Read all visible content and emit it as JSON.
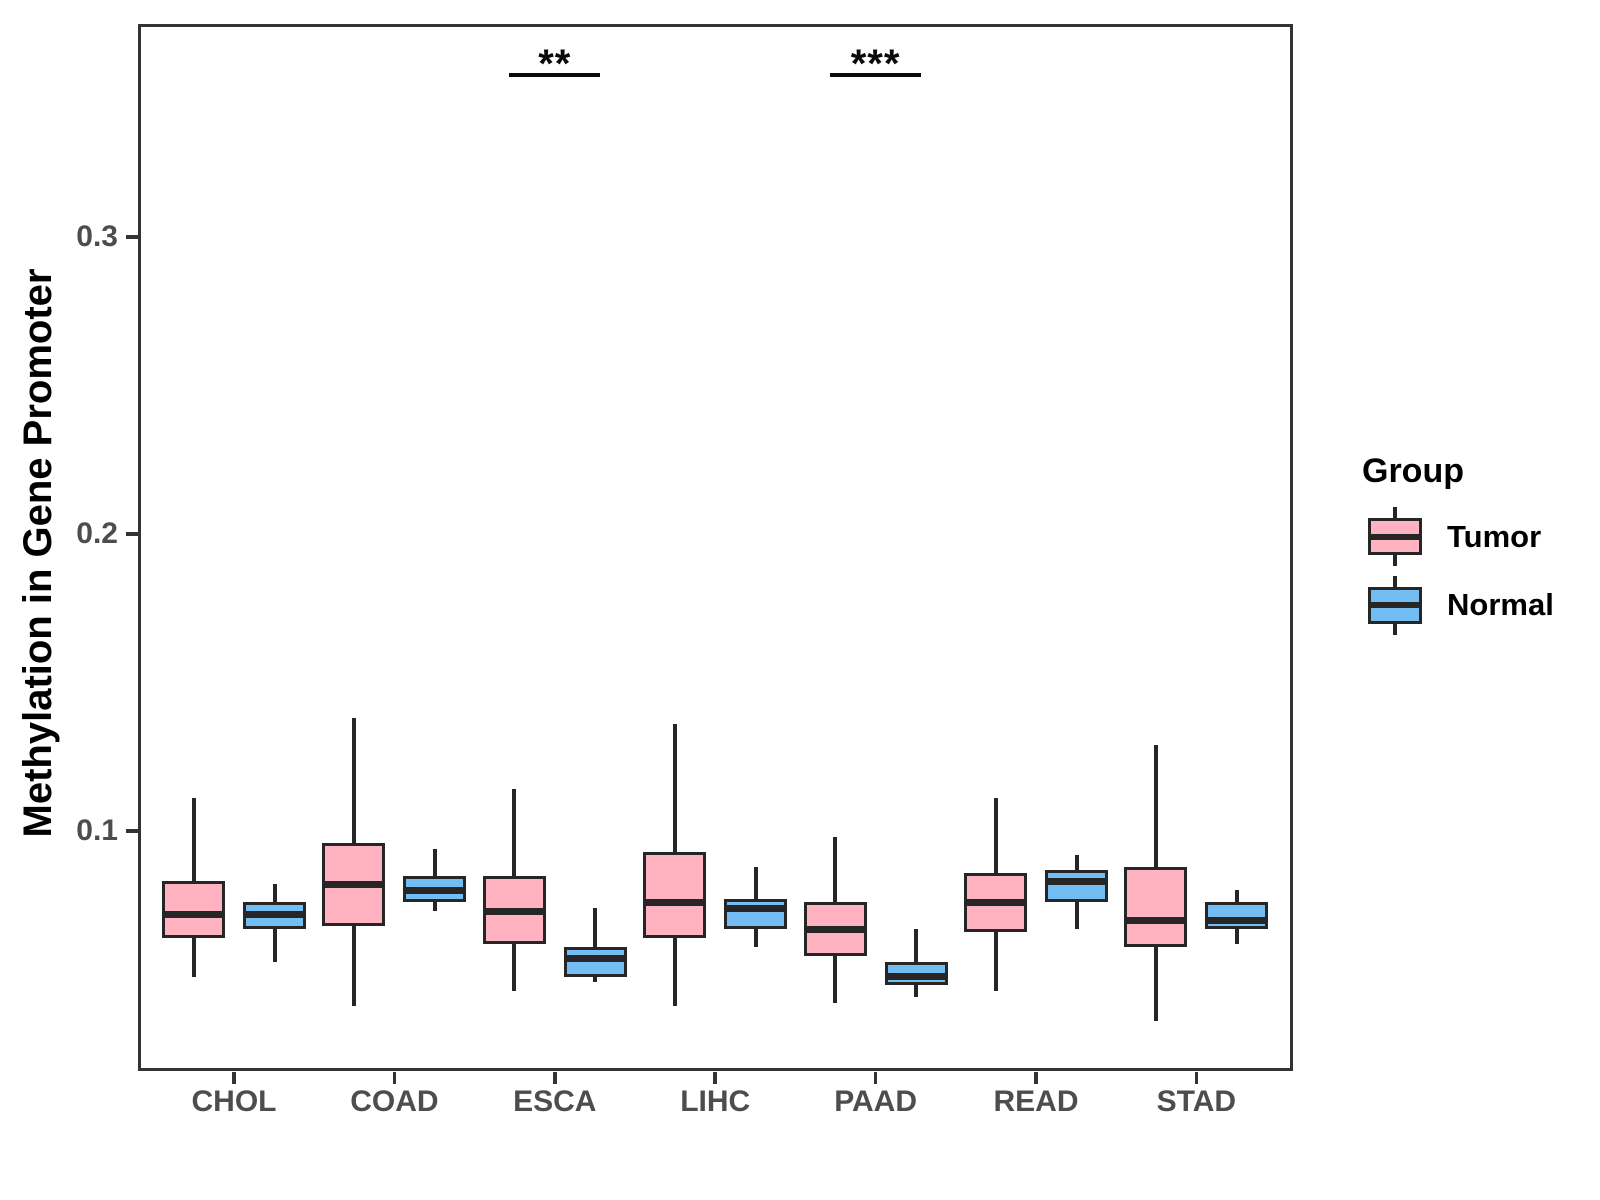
{
  "figure": {
    "y_axis_title": "Methylation in Gene Promoter",
    "x_axis_title": "",
    "legend_title": "Group"
  },
  "colors": {
    "tumor_fill": "#FFB3C1",
    "normal_fill": "#73BDF2",
    "box_stroke": "#262626",
    "panel_border": "#333333",
    "axis_text": "#4d4d4d",
    "annotation": "#0a0a0a"
  },
  "legend": {
    "title": "Group",
    "position": "right",
    "entries": [
      {
        "label": "Tumor",
        "color": "#FFB3C1"
      },
      {
        "label": "Normal",
        "color": "#73BDF2"
      }
    ]
  },
  "chart_data": {
    "type": "boxplot",
    "title": "",
    "xlabel": "",
    "ylabel": "Methylation in Gene Promoter",
    "categories": [
      "CHOL",
      "COAD",
      "ESCA",
      "LIHC",
      "PAAD",
      "READ",
      "STAD"
    ],
    "y_ticks": [
      {
        "value": 0.1,
        "label": "0.1"
      },
      {
        "value": 0.2,
        "label": "0.2"
      },
      {
        "value": 0.3,
        "label": "0.3"
      }
    ],
    "ylim": [
      0.027,
      0.372
    ],
    "grid": false,
    "legend_position": "right",
    "series": [
      {
        "name": "Tumor",
        "color": "#FFB3C1",
        "boxes": [
          {
            "category": "CHOL",
            "whisker_low": 0.051,
            "q1": 0.064,
            "median": 0.072,
            "q3": 0.083,
            "whisker_high": 0.111
          },
          {
            "category": "COAD",
            "whisker_low": 0.041,
            "q1": 0.068,
            "median": 0.082,
            "q3": 0.096,
            "whisker_high": 0.138
          },
          {
            "category": "ESCA",
            "whisker_low": 0.046,
            "q1": 0.062,
            "median": 0.073,
            "q3": 0.085,
            "whisker_high": 0.114
          },
          {
            "category": "LIHC",
            "whisker_low": 0.041,
            "q1": 0.064,
            "median": 0.076,
            "q3": 0.093,
            "whisker_high": 0.136
          },
          {
            "category": "PAAD",
            "whisker_low": 0.042,
            "q1": 0.058,
            "median": 0.067,
            "q3": 0.076,
            "whisker_high": 0.098
          },
          {
            "category": "READ",
            "whisker_low": 0.046,
            "q1": 0.066,
            "median": 0.076,
            "q3": 0.086,
            "whisker_high": 0.111
          },
          {
            "category": "STAD",
            "whisker_low": 0.036,
            "q1": 0.061,
            "median": 0.07,
            "q3": 0.088,
            "whisker_high": 0.129
          }
        ]
      },
      {
        "name": "Normal",
        "color": "#73BDF2",
        "boxes": [
          {
            "category": "CHOL",
            "whisker_low": 0.056,
            "q1": 0.067,
            "median": 0.072,
            "q3": 0.076,
            "whisker_high": 0.082
          },
          {
            "category": "COAD",
            "whisker_low": 0.073,
            "q1": 0.076,
            "median": 0.08,
            "q3": 0.085,
            "whisker_high": 0.094
          },
          {
            "category": "ESCA",
            "whisker_low": 0.049,
            "q1": 0.051,
            "median": 0.057,
            "q3": 0.061,
            "whisker_high": 0.074
          },
          {
            "category": "LIHC",
            "whisker_low": 0.061,
            "q1": 0.067,
            "median": 0.074,
            "q3": 0.077,
            "whisker_high": 0.088
          },
          {
            "category": "PAAD",
            "whisker_low": 0.044,
            "q1": 0.048,
            "median": 0.051,
            "q3": 0.056,
            "whisker_high": 0.067
          },
          {
            "category": "READ",
            "whisker_low": 0.067,
            "q1": 0.076,
            "median": 0.083,
            "q3": 0.087,
            "whisker_high": 0.092
          },
          {
            "category": "STAD",
            "whisker_low": 0.062,
            "q1": 0.067,
            "median": 0.07,
            "q3": 0.076,
            "whisker_high": 0.08
          }
        ]
      }
    ],
    "annotations": [
      {
        "category": "ESCA",
        "label": "**"
      },
      {
        "category": "PAAD",
        "label": "***"
      }
    ]
  }
}
